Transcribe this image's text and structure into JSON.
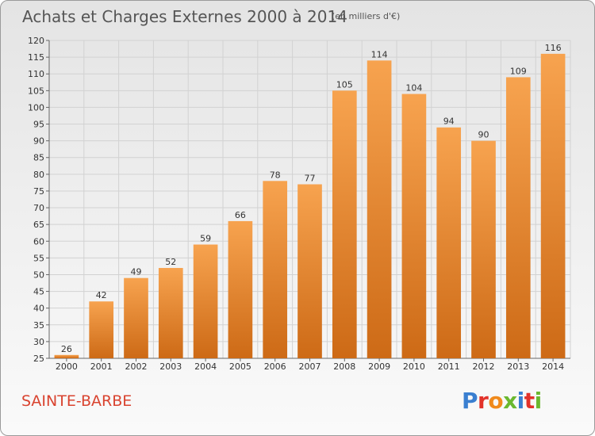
{
  "header": {
    "title": "Achats et Charges Externes 2000 à 2014",
    "subtitle": "(en milliers d'€)"
  },
  "footer": {
    "place": "SAINTE-BARBE",
    "logo_text": "Proxiti"
  },
  "colors": {
    "bar_top": "#f7a34f",
    "bar_bottom": "#cd6a16",
    "place": "#d9432f",
    "logo_letters": [
      "#3a7fd0",
      "#e2322a",
      "#f08a1c",
      "#6bb82f",
      "#3a7fd0",
      "#e2322a",
      "#6bb82f"
    ]
  },
  "chart_data": {
    "type": "bar",
    "title": "Achats et Charges Externes 2000 à 2014",
    "subtitle": "(en milliers d'€)",
    "categories": [
      "2000",
      "2001",
      "2002",
      "2003",
      "2004",
      "2005",
      "2006",
      "2007",
      "2008",
      "2009",
      "2010",
      "2011",
      "2012",
      "2013",
      "2014"
    ],
    "values": [
      26,
      42,
      49,
      52,
      59,
      66,
      78,
      77,
      105,
      114,
      104,
      94,
      90,
      109,
      116
    ],
    "ylim": [
      25,
      120
    ],
    "yticks": [
      25,
      30,
      35,
      40,
      45,
      50,
      55,
      60,
      65,
      70,
      75,
      80,
      85,
      90,
      95,
      100,
      105,
      110,
      115,
      120
    ],
    "grid": true,
    "data_labels": true
  }
}
